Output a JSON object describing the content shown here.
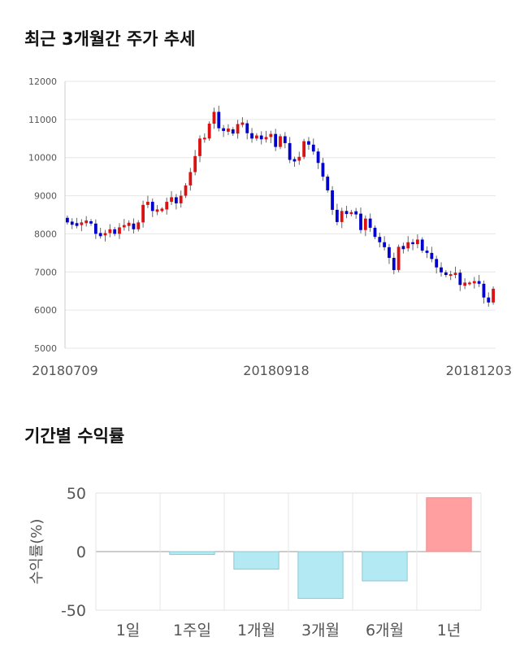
{
  "sections": {
    "price_title": "최근 3개월간 주가 추세",
    "returns_title": "기간별 수익률"
  },
  "chart_data": [
    {
      "type": "candlestick",
      "title": "최근 3개월간 주가 추세",
      "y_ticks": [
        "12000",
        "11000",
        "10000",
        "9000",
        "8000",
        "7000",
        "6000",
        "5000"
      ],
      "ylim": [
        5000,
        12000
      ],
      "x_ticks": [
        "20180709",
        "20180918",
        "20181203"
      ],
      "grid": true,
      "colors": {
        "up": "#dd1111",
        "down": "#0000cc",
        "wick": "#666666"
      },
      "close": [
        8300,
        8260,
        8230,
        8300,
        8330,
        8270,
        8000,
        7960,
        8020,
        8120,
        8000,
        8170,
        8230,
        8270,
        8120,
        8300,
        8760,
        8840,
        8600,
        8620,
        8640,
        8840,
        8960,
        8800,
        9000,
        9270,
        9620,
        10040,
        10500,
        10500,
        10890,
        11200,
        10770,
        10700,
        10740,
        10630,
        10880,
        10900,
        10640,
        10500,
        10580,
        10480,
        10540,
        10620,
        10280,
        10560,
        10380,
        9940,
        9920,
        10020,
        10430,
        10340,
        10160,
        9860,
        9500,
        9140,
        8630,
        8310,
        8600,
        8520,
        8570,
        8530,
        8100,
        8400,
        8160,
        7920,
        7780,
        7650,
        7370,
        7050,
        7660,
        7620,
        7780,
        7730,
        7850,
        7560,
        7500,
        7340,
        7120,
        6990,
        6920,
        6920,
        6980,
        6660,
        6700,
        6700,
        6760,
        6690,
        6330,
        6200,
        6560
      ],
      "returns_chart": null
    },
    {
      "type": "bar",
      "categories": [
        "1일",
        "1주일",
        "1개월",
        "3개월",
        "6개월",
        "1년"
      ],
      "values": [
        0,
        -2.5,
        -15,
        -40,
        -25,
        46
      ],
      "ylabel": "수익률(%)",
      "y_ticks": [
        "50",
        "0",
        "-50"
      ],
      "ylim": [
        -50,
        50
      ],
      "grid": true,
      "colors": {
        "negative": "#b3e9f2",
        "positive": "#ff9f9f"
      }
    }
  ]
}
